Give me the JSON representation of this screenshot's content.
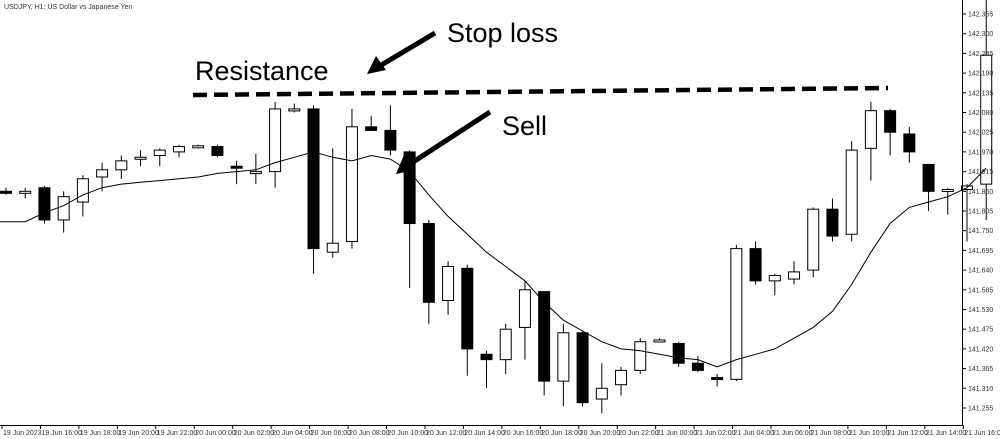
{
  "window_title": "USDJPY, H1: US Dollar vs Japanese Yen",
  "colors": {
    "bull_fill": "#ffffff",
    "bear_fill": "#000000",
    "outline": "#000000",
    "grid": "#e6e6e6",
    "axis": "#000000"
  },
  "annotations": {
    "stop_loss": "Stop loss",
    "resistance": "Resistance",
    "sell": "Sell"
  },
  "chart_data": {
    "type": "candlestick",
    "title": "USDJPY, H1: US Dollar vs Japanese Yen",
    "xlabel": "",
    "ylabel": "",
    "ylim": [
      141.22,
      142.44
    ],
    "grid": false,
    "y_ticks": [
      "142.355",
      "142.300",
      "142.245",
      "142.190",
      "142.135",
      "142.080",
      "142.025",
      "141.970",
      "141.915",
      "141.860",
      "141.805",
      "141.750",
      "141.695",
      "141.640",
      "141.585",
      "141.530",
      "141.475",
      "141.420",
      "141.365",
      "141.310",
      "141.255"
    ],
    "x_ticks": [
      "19 Jun 2023",
      "19 Jun 16:00",
      "19 Jun 18:00",
      "19 Jun 20:00",
      "19 Jun 22:00",
      "20 Jun 00:00",
      "20 Jun 02:00",
      "20 Jun 04:00",
      "20 Jun 06:00",
      "20 Jun 08:00",
      "20 Jun 10:00",
      "20 Jun 12:00",
      "20 Jun 14:00",
      "20 Jun 16:00",
      "20 Jun 18:00",
      "20 Jun 20:00",
      "20 Jun 22:00",
      "21 Jun 00:00",
      "21 Jun 02:00",
      "21 Jun 04:00",
      "21 Jun 06:00",
      "21 Jun 08:00",
      "21 Jun 10:00",
      "21 Jun 12:00",
      "21 Jun 14:00",
      "21 Jun 16:00"
    ],
    "candles": [
      {
        "o": 141.86,
        "h": 141.87,
        "l": 141.85,
        "c": 141.855
      },
      {
        "o": 141.855,
        "h": 141.87,
        "l": 141.84,
        "c": 141.86
      },
      {
        "o": 141.87,
        "h": 141.875,
        "l": 141.77,
        "c": 141.78
      },
      {
        "o": 141.78,
        "h": 141.86,
        "l": 141.745,
        "c": 141.845
      },
      {
        "o": 141.83,
        "h": 141.905,
        "l": 141.79,
        "c": 141.895
      },
      {
        "o": 141.9,
        "h": 141.94,
        "l": 141.86,
        "c": 141.92
      },
      {
        "o": 141.92,
        "h": 141.96,
        "l": 141.895,
        "c": 141.945
      },
      {
        "o": 141.95,
        "h": 141.975,
        "l": 141.93,
        "c": 141.955
      },
      {
        "o": 141.96,
        "h": 141.98,
        "l": 141.93,
        "c": 141.975
      },
      {
        "o": 141.97,
        "h": 141.99,
        "l": 141.955,
        "c": 141.985
      },
      {
        "o": 141.985,
        "h": 141.99,
        "l": 141.98,
        "c": 141.987
      },
      {
        "o": 141.985,
        "h": 141.99,
        "l": 141.955,
        "c": 141.96
      },
      {
        "o": 141.93,
        "h": 141.945,
        "l": 141.88,
        "c": 141.925
      },
      {
        "o": 141.91,
        "h": 141.965,
        "l": 141.88,
        "c": 141.915
      },
      {
        "o": 141.915,
        "h": 142.11,
        "l": 141.87,
        "c": 142.09
      },
      {
        "o": 142.085,
        "h": 142.105,
        "l": 142.08,
        "c": 142.09
      },
      {
        "o": 142.09,
        "h": 142.1,
        "l": 141.63,
        "c": 141.7
      },
      {
        "o": 141.69,
        "h": 141.98,
        "l": 141.675,
        "c": 141.715
      },
      {
        "o": 141.72,
        "h": 142.09,
        "l": 141.7,
        "c": 142.04
      },
      {
        "o": 142.04,
        "h": 142.07,
        "l": 142.03,
        "c": 142.03
      },
      {
        "o": 142.03,
        "h": 142.1,
        "l": 141.96,
        "c": 141.975
      },
      {
        "o": 141.97,
        "h": 141.975,
        "l": 141.59,
        "c": 141.77
      },
      {
        "o": 141.77,
        "h": 141.78,
        "l": 141.49,
        "c": 141.55
      },
      {
        "o": 141.555,
        "h": 141.665,
        "l": 141.515,
        "c": 141.65
      },
      {
        "o": 141.645,
        "h": 141.655,
        "l": 141.345,
        "c": 141.42
      },
      {
        "o": 141.405,
        "h": 141.415,
        "l": 141.31,
        "c": 141.39
      },
      {
        "o": 141.39,
        "h": 141.49,
        "l": 141.35,
        "c": 141.475
      },
      {
        "o": 141.48,
        "h": 141.61,
        "l": 141.39,
        "c": 141.585
      },
      {
        "o": 141.58,
        "h": 141.58,
        "l": 141.29,
        "c": 141.33
      },
      {
        "o": 141.33,
        "h": 141.49,
        "l": 141.26,
        "c": 141.465
      },
      {
        "o": 141.465,
        "h": 141.47,
        "l": 141.26,
        "c": 141.27
      },
      {
        "o": 141.28,
        "h": 141.38,
        "l": 141.24,
        "c": 141.31
      },
      {
        "o": 141.32,
        "h": 141.37,
        "l": 141.29,
        "c": 141.36
      },
      {
        "o": 141.36,
        "h": 141.45,
        "l": 141.35,
        "c": 141.44
      },
      {
        "o": 141.445,
        "h": 141.45,
        "l": 141.44,
        "c": 141.445
      },
      {
        "o": 141.435,
        "h": 141.44,
        "l": 141.37,
        "c": 141.38
      },
      {
        "o": 141.38,
        "h": 141.4,
        "l": 141.355,
        "c": 141.36
      },
      {
        "o": 141.34,
        "h": 141.35,
        "l": 141.315,
        "c": 141.335
      },
      {
        "o": 141.335,
        "h": 141.71,
        "l": 141.33,
        "c": 141.7
      },
      {
        "o": 141.7,
        "h": 141.72,
        "l": 141.6,
        "c": 141.61
      },
      {
        "o": 141.61,
        "h": 141.63,
        "l": 141.57,
        "c": 141.625
      },
      {
        "o": 141.615,
        "h": 141.665,
        "l": 141.6,
        "c": 141.635
      },
      {
        "o": 141.64,
        "h": 141.815,
        "l": 141.62,
        "c": 141.81
      },
      {
        "o": 141.81,
        "h": 141.84,
        "l": 141.72,
        "c": 141.735
      },
      {
        "o": 141.74,
        "h": 142.0,
        "l": 141.72,
        "c": 141.975
      },
      {
        "o": 141.98,
        "h": 142.11,
        "l": 141.89,
        "c": 142.085
      },
      {
        "o": 142.085,
        "h": 142.09,
        "l": 141.96,
        "c": 142.025
      },
      {
        "o": 142.02,
        "h": 142.04,
        "l": 141.94,
        "c": 141.97
      },
      {
        "o": 141.935,
        "h": 141.935,
        "l": 141.805,
        "c": 141.86
      },
      {
        "o": 141.86,
        "h": 141.87,
        "l": 141.795,
        "c": 141.865
      },
      {
        "o": 141.865,
        "h": 141.88,
        "l": 141.72,
        "c": 141.875
      },
      {
        "o": 141.88,
        "h": 142.42,
        "l": 141.78,
        "c": 142.24
      }
    ],
    "moving_average": [
      141.775,
      141.775,
      141.8,
      141.82,
      141.85,
      141.87,
      141.88,
      141.885,
      141.89,
      141.895,
      141.9,
      141.91,
      141.915,
      141.92,
      141.94,
      141.955,
      141.97,
      141.955,
      141.945,
      141.96,
      141.95,
      141.915,
      141.85,
      141.79,
      141.74,
      141.69,
      141.65,
      141.61,
      141.55,
      141.5,
      141.47,
      141.44,
      141.42,
      141.415,
      141.405,
      141.395,
      141.39,
      141.37,
      141.39,
      141.405,
      141.42,
      141.45,
      141.48,
      141.525,
      141.6,
      141.69,
      141.77,
      141.815,
      141.83,
      141.845,
      141.87,
      141.925
    ],
    "resistance_level": 142.135
  }
}
